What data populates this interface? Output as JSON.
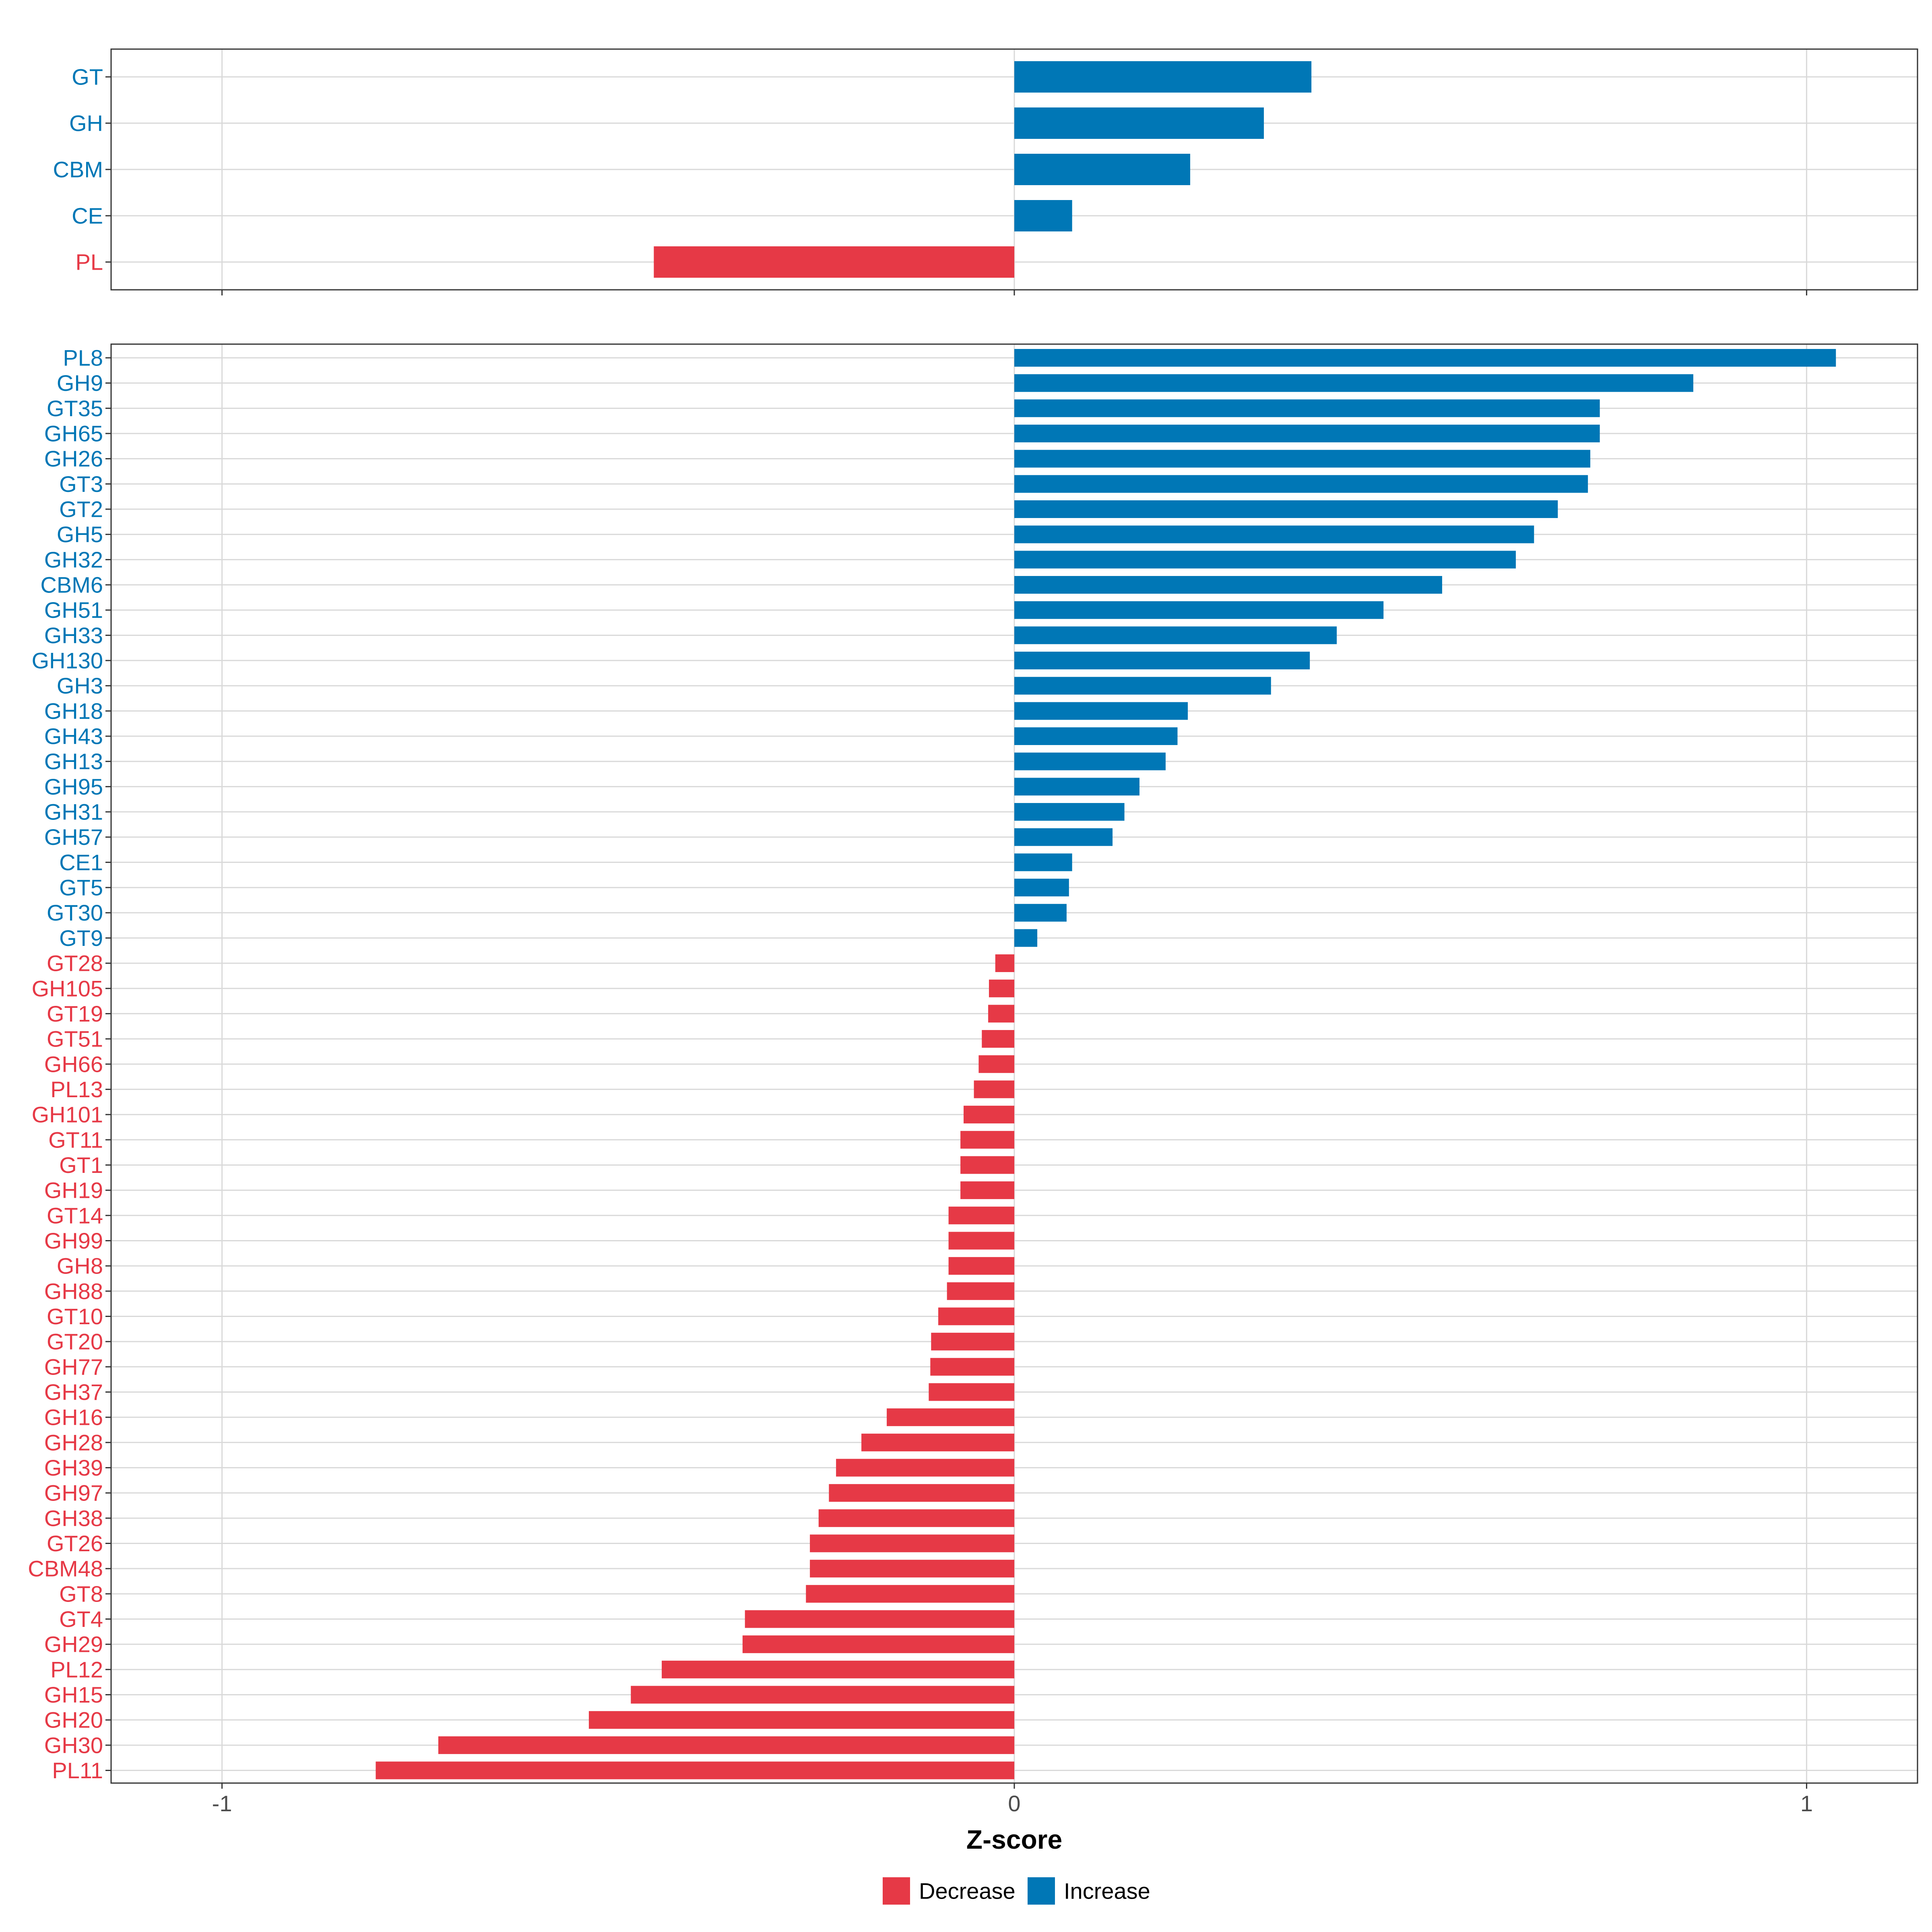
{
  "chart_data": [
    {
      "type": "bar",
      "orientation": "horizontal",
      "panel": "top",
      "categories": [
        "GT",
        "GH",
        "CBM",
        "CE",
        "PL"
      ],
      "values": [
        0.375,
        0.315,
        0.222,
        0.073,
        -0.455
      ],
      "xlim": [
        -1.14,
        1.14
      ],
      "xticks": [
        -1,
        0,
        1
      ],
      "grid": true
    },
    {
      "type": "bar",
      "orientation": "horizontal",
      "panel": "bottom",
      "categories": [
        "PL8",
        "GH9",
        "GT35",
        "GH65",
        "GH26",
        "GT3",
        "GT2",
        "GH5",
        "GH32",
        "CBM6",
        "GH51",
        "GH33",
        "GH130",
        "GH3",
        "GH18",
        "GH43",
        "GH13",
        "GH95",
        "GH31",
        "GH57",
        "CE1",
        "GT5",
        "GT30",
        "GT9",
        "GT28",
        "GH105",
        "GT19",
        "GT51",
        "GH66",
        "PL13",
        "GH101",
        "GT11",
        "GT1",
        "GH19",
        "GT14",
        "GH99",
        "GH8",
        "GH88",
        "GT10",
        "GT20",
        "GH77",
        "GH37",
        "GH16",
        "GH28",
        "GH39",
        "GH97",
        "GH38",
        "GT26",
        "CBM48",
        "GT8",
        "GT4",
        "GH29",
        "PL12",
        "GH15",
        "GH20",
        "GH30",
        "PL11"
      ],
      "values": [
        1.037,
        0.857,
        0.739,
        0.739,
        0.727,
        0.724,
        0.686,
        0.656,
        0.633,
        0.54,
        0.466,
        0.407,
        0.373,
        0.324,
        0.219,
        0.206,
        0.191,
        0.158,
        0.139,
        0.124,
        0.073,
        0.069,
        0.066,
        0.029,
        -0.024,
        -0.032,
        -0.033,
        -0.041,
        -0.045,
        -0.051,
        -0.064,
        -0.068,
        -0.068,
        -0.068,
        -0.083,
        -0.083,
        -0.083,
        -0.085,
        -0.096,
        -0.105,
        -0.106,
        -0.108,
        -0.161,
        -0.193,
        -0.225,
        -0.234,
        -0.247,
        -0.258,
        -0.258,
        -0.263,
        -0.34,
        -0.343,
        -0.445,
        -0.484,
        -0.537,
        -0.727,
        -0.806
      ],
      "xlim": [
        -1.14,
        1.14
      ],
      "xticks": [
        -1,
        0,
        1
      ],
      "xlabel": "Z-score",
      "grid": true
    }
  ],
  "xtick_labels": [
    "-1",
    "0",
    "1"
  ],
  "xlabel": "Z-score",
  "legend": {
    "placement": "bottom",
    "items": [
      {
        "label": "Decrease",
        "color": "#E63946"
      },
      {
        "label": "Increase",
        "color": "#0077B6"
      }
    ]
  },
  "colors": {
    "decrease": "#E63946",
    "increase": "#0077B6",
    "grid": "#D9D9D9",
    "border": "#333333"
  }
}
